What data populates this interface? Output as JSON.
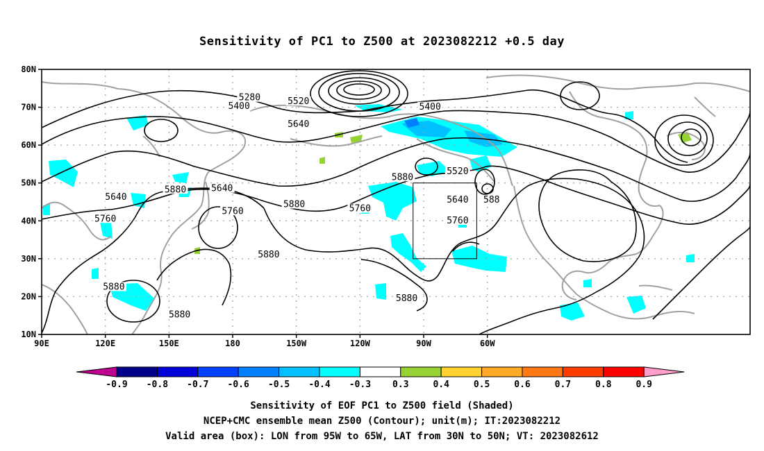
{
  "title": "Sensitivity of PC1 to Z500 at 2023082212 +0.5 day",
  "map": {
    "lon_labels": [
      "90E",
      "120E",
      "150E",
      "180",
      "150W",
      "120W",
      "90W",
      "60W"
    ],
    "lat_labels": [
      "80N",
      "70N",
      "60N",
      "50N",
      "40N",
      "30N",
      "20N",
      "10N"
    ],
    "contour_labels": [
      {
        "text": "5280",
        "lon": 188,
        "lat": 72
      },
      {
        "text": "5400",
        "lon": 183,
        "lat": 69.7
      },
      {
        "text": "5520",
        "lon": 211,
        "lat": 71
      },
      {
        "text": "5400",
        "lon": 273,
        "lat": 69.6
      },
      {
        "text": "5640",
        "lon": 211,
        "lat": 65
      },
      {
        "text": "5640",
        "lon": 125,
        "lat": 45.7
      },
      {
        "text": "5880",
        "lon": 153,
        "lat": 47.7
      },
      {
        "text": "5640",
        "lon": 175,
        "lat": 48
      },
      {
        "text": "5760",
        "lon": 120,
        "lat": 40
      },
      {
        "text": "5760",
        "lon": 180,
        "lat": 42
      },
      {
        "text": "5880",
        "lon": 209,
        "lat": 43.8
      },
      {
        "text": "5760",
        "lon": 240,
        "lat": 42.7
      },
      {
        "text": "5880",
        "lon": 260,
        "lat": 51
      },
      {
        "text": "5520",
        "lon": 286,
        "lat": 52.5
      },
      {
        "text": "5640",
        "lon": 286,
        "lat": 45
      },
      {
        "text": "5760",
        "lon": 286,
        "lat": 39.5
      },
      {
        "text": "588",
        "lon": 302,
        "lat": 45
      },
      {
        "text": "5880",
        "lon": 197,
        "lat": 30.5
      },
      {
        "text": "5880",
        "lon": 124,
        "lat": 22
      },
      {
        "text": "5880",
        "lon": 155,
        "lat": 14.7
      },
      {
        "text": "5880",
        "lon": 262,
        "lat": 19
      }
    ],
    "valid_box": {
      "lon_min": 265,
      "lon_max": 295,
      "lat_min": 30,
      "lat_max": 50
    }
  },
  "colorbar": {
    "labels": [
      "-0.9",
      "-0.8",
      "-0.7",
      "-0.6",
      "-0.5",
      "-0.4",
      "-0.3",
      "0.3",
      "0.4",
      "0.5",
      "0.6",
      "0.7",
      "0.8",
      "0.9"
    ],
    "colors": [
      "#00008c",
      "#0000d8",
      "#0040ff",
      "#0080ff",
      "#00c0ff",
      "#00ffff",
      "#ffffff",
      "#96d232",
      "#ffd232",
      "#ffaa28",
      "#ff7814",
      "#ff3c00",
      "#ff0000"
    ],
    "low_extend_color": "#c00090",
    "high_extend_color": "#ff9ec8"
  },
  "caption": {
    "line1": "Sensitivity of EOF PC1 to Z500 field (Shaded)",
    "line2": "NCEP+CMC ensemble mean Z500 (Contour); unit(m); IT:2023082212",
    "line3": "Valid area (box): LON from 95W to 65W, LAT from 30N to 50N; VT: 2023082612"
  }
}
